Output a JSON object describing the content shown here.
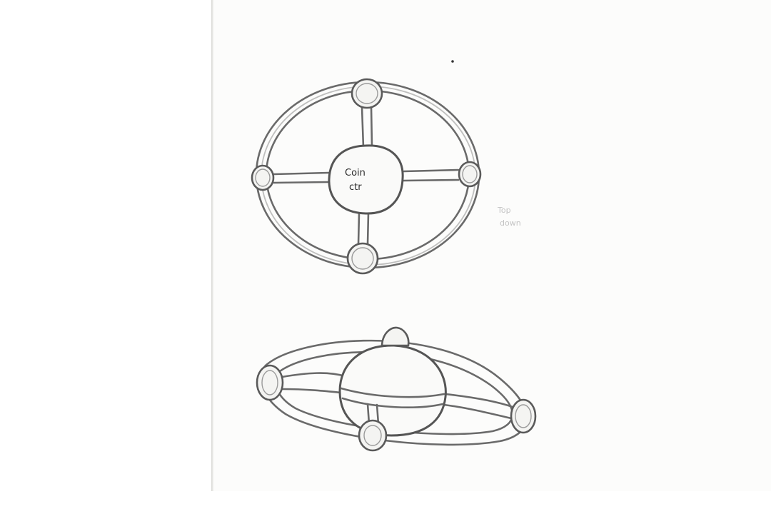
{
  "top_view": {
    "hub_label_line1": "Coin",
    "hub_label_line2": "ctr"
  },
  "side_note": {
    "line1": "Top",
    "line2": "down"
  },
  "colors": {
    "pencil": "#6a6a6a",
    "paper": "#fcfcfb"
  }
}
